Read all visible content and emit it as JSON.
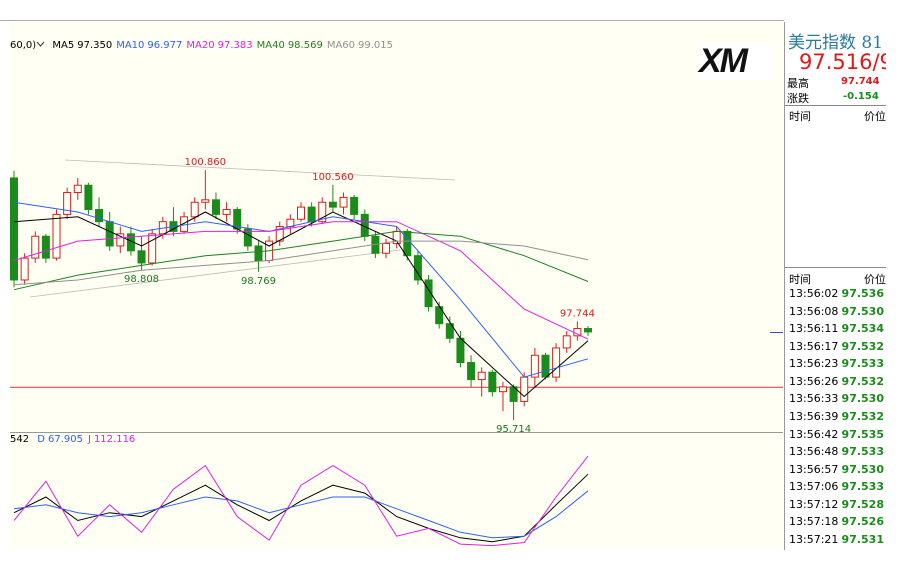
{
  "chart_data": {
    "type": "candlestick",
    "indicator_prefix": "60,0)",
    "xlim": [
      1,
      55
    ],
    "ylim": [
      95.47,
      103.54
    ],
    "up_color": "#d42020",
    "down_color": "#1b8c1b",
    "open": [
      100.7,
      98.6,
      99.05,
      99.5,
      99.05,
      99.95,
      100.4,
      100.55,
      100.05,
      99.8,
      99.3,
      99.55,
      99.2,
      98.95,
      99.55,
      99.8,
      99.6,
      99.9,
      100.2,
      100.25,
      99.95,
      100.05,
      99.65,
      99.3,
      99.0,
      99.4,
      99.7,
      99.85,
      100.1,
      99.8,
      100.2,
      100.1,
      100.3,
      99.95,
      99.5,
      99.15,
      99.35,
      99.6,
      99.1,
      98.6,
      98.05,
      97.7,
      97.4,
      96.9,
      96.55,
      96.7,
      96.3,
      96.4,
      96.1,
      96.6,
      97.05,
      96.6,
      97.2,
      97.45,
      97.6
    ],
    "high": [
      100.85,
      99.15,
      99.6,
      99.55,
      100.05,
      100.5,
      100.7,
      100.6,
      100.3,
      100.0,
      99.7,
      99.7,
      99.5,
      99.65,
      99.9,
      100.1,
      100.0,
      100.3,
      100.86,
      100.4,
      100.2,
      100.1,
      99.75,
      99.4,
      99.5,
      99.8,
      99.95,
      100.2,
      100.2,
      100.3,
      100.56,
      100.4,
      100.35,
      100.05,
      99.6,
      99.45,
      99.7,
      99.65,
      99.2,
      98.7,
      98.15,
      97.85,
      97.55,
      97.05,
      96.8,
      96.75,
      96.5,
      96.45,
      96.7,
      97.2,
      97.1,
      97.3,
      97.55,
      97.744,
      97.65
    ],
    "low": [
      98.45,
      98.5,
      98.95,
      98.95,
      99.0,
      99.85,
      100.25,
      99.95,
      99.7,
      99.2,
      99.15,
      99.1,
      98.808,
      98.9,
      99.45,
      99.5,
      99.55,
      99.8,
      100.05,
      99.85,
      99.8,
      99.55,
      99.2,
      98.769,
      98.95,
      99.3,
      99.55,
      99.8,
      99.7,
      99.75,
      100.0,
      99.95,
      99.85,
      99.4,
      99.05,
      99.05,
      99.25,
      99.0,
      98.5,
      97.95,
      97.6,
      97.3,
      96.8,
      96.4,
      96.2,
      96.2,
      95.9,
      95.714,
      96.0,
      96.4,
      96.55,
      96.5,
      97.1,
      97.35,
      97.45
    ],
    "close": [
      98.6,
      99.05,
      99.5,
      99.05,
      99.95,
      100.4,
      100.55,
      100.05,
      99.8,
      99.3,
      99.55,
      99.2,
      98.95,
      99.55,
      99.8,
      99.6,
      99.9,
      100.2,
      100.25,
      99.95,
      100.05,
      99.65,
      99.3,
      99.0,
      99.4,
      99.7,
      99.85,
      100.1,
      99.8,
      100.2,
      100.1,
      100.3,
      99.95,
      99.5,
      99.15,
      99.35,
      99.6,
      99.1,
      98.6,
      98.05,
      97.7,
      97.4,
      96.9,
      96.55,
      96.7,
      96.3,
      96.4,
      96.1,
      96.6,
      97.05,
      96.6,
      97.2,
      97.45,
      97.6,
      97.53
    ],
    "annotations": [
      {
        "value": 100.86,
        "label": "100.860"
      },
      {
        "value": 98.808,
        "label": "98.808"
      },
      {
        "value": 98.769,
        "label": "98.769"
      },
      {
        "value": 100.56,
        "label": "100.560"
      },
      {
        "value": 95.714,
        "label": "95.714"
      },
      {
        "value": 97.744,
        "label": "97.744"
      }
    ],
    "hline": {
      "value": 96.39,
      "color": "#e03030"
    },
    "ma_x": [
      1,
      7,
      13,
      19,
      25,
      31,
      37,
      43,
      49,
      55
    ],
    "series": [
      {
        "name": "MA5",
        "value_label": "97.350",
        "color": "#000000",
        "values": [
          99.8,
          99.9,
          99.3,
          100.0,
          99.3,
          100.0,
          99.4,
          97.4,
          96.2,
          97.35
        ]
      },
      {
        "name": "MA10",
        "value_label": "96.977",
        "color": "#3060f0",
        "values": [
          100.2,
          100.0,
          99.6,
          99.8,
          99.6,
          99.9,
          99.7,
          98.2,
          96.6,
          96.977
        ]
      },
      {
        "name": "MA20",
        "value_label": "97.383",
        "color": "#e020e0",
        "values": [
          99.0,
          99.4,
          99.5,
          99.6,
          99.6,
          99.8,
          99.8,
          99.2,
          98.0,
          97.383
        ]
      },
      {
        "name": "MA40",
        "value_label": "98.569",
        "color": "#208020",
        "values": [
          98.4,
          98.7,
          98.9,
          99.1,
          99.2,
          99.4,
          99.6,
          99.5,
          99.1,
          98.569
        ]
      },
      {
        "name": "MA60",
        "value_label": "99.015",
        "color": "#909090",
        "values": [
          98.5,
          98.6,
          98.8,
          98.9,
          99.0,
          99.2,
          99.4,
          99.4,
          99.3,
          99.015
        ]
      }
    ],
    "kdj": {
      "prefix": "542",
      "ylim": [
        -5,
        125
      ],
      "x": [
        1,
        4,
        7,
        10,
        13,
        16,
        19,
        22,
        25,
        28,
        31,
        34,
        37,
        40,
        43,
        46,
        49,
        52,
        55
      ],
      "series": [
        {
          "color": "#000000",
          "values": [
            40,
            60,
            30,
            40,
            35,
            55,
            75,
            50,
            30,
            55,
            75,
            65,
            35,
            20,
            8,
            3,
            10,
            50,
            89
          ]
        },
        {
          "name": "D",
          "value_label": "67.905",
          "color": "#3060f0",
          "values": [
            45,
            50,
            40,
            35,
            40,
            50,
            60,
            55,
            40,
            50,
            60,
            60,
            45,
            30,
            15,
            8,
            10,
            35,
            67.905
          ]
        },
        {
          "name": "J",
          "value_label": "112.116",
          "color": "#e020e0",
          "values": [
            30,
            80,
            10,
            50,
            15,
            70,
            100,
            35,
            5,
            75,
            100,
            75,
            10,
            20,
            0,
            -2,
            2,
            60,
            112.116
          ]
        }
      ]
    }
  },
  "logo": "XM",
  "quote_panel": {
    "title": "美元指数 81",
    "price": "97.516/9",
    "high_label": "最高",
    "high": "97.744",
    "change_label": "涨跌",
    "change": "-0.154",
    "cols": [
      "时间",
      "价位"
    ],
    "ticks": [
      [
        "13:56:02",
        "97.536"
      ],
      [
        "13:56:08",
        "97.530"
      ],
      [
        "13:56:11",
        "97.534"
      ],
      [
        "13:56:17",
        "97.532"
      ],
      [
        "13:56:23",
        "97.533"
      ],
      [
        "13:56:26",
        "97.532"
      ],
      [
        "13:56:33",
        "97.530"
      ],
      [
        "13:56:39",
        "97.532"
      ],
      [
        "13:56:42",
        "97.535"
      ],
      [
        "13:56:48",
        "97.533"
      ],
      [
        "13:56:57",
        "97.530"
      ],
      [
        "13:57:06",
        "97.533"
      ],
      [
        "13:57:12",
        "97.528"
      ],
      [
        "13:57:18",
        "97.526"
      ],
      [
        "13:57:21",
        "97.531"
      ]
    ]
  }
}
